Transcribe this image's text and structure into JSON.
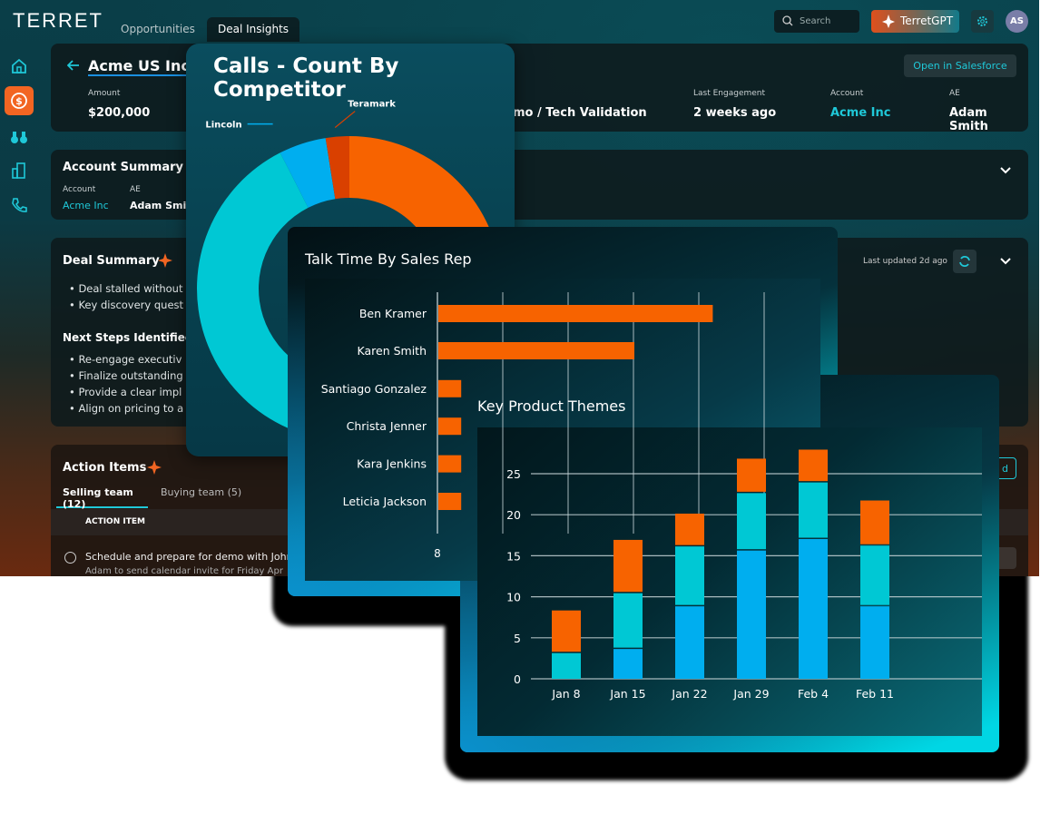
{
  "app": {
    "logo": "TERRET",
    "tabs": [
      {
        "label": "Opportunities",
        "active": false
      },
      {
        "label": "Deal Insights",
        "active": true
      }
    ],
    "search_placeholder": "Search",
    "gpt_button": "TerretGPT",
    "avatar_initials": "AS",
    "sidebar_icons": [
      "home-icon",
      "dollar-icon",
      "binoculars-icon",
      "building-icon",
      "phone-icon"
    ],
    "active_sidebar": "dollar-icon",
    "colors": {
      "accent": "#f26522",
      "teal": "#1fc8d8"
    }
  },
  "deal": {
    "title": "Acme US Inc N",
    "open_salesforce": "Open in Salesforce",
    "fields": [
      {
        "label": "Amount",
        "value": "$200,000"
      },
      {
        "label": "",
        "value": "mo / Tech Validation"
      },
      {
        "label": "Last Engagement",
        "value": "2 weeks ago"
      },
      {
        "label": "Account",
        "value": "Acme Inc"
      },
      {
        "label": "AE",
        "value": "Adam Smith"
      }
    ]
  },
  "account_summary": {
    "title": "Account Summary",
    "account_label": "Account",
    "account_value": "Acme Inc",
    "ae_label": "AE",
    "ae_value": "Adam Smit"
  },
  "deal_summary": {
    "title": "Deal Summary",
    "last_updated": "Last updated 2d ago",
    "bullets": [
      "Deal stalled without",
      "Key discovery quest"
    ],
    "next_steps_title": "Next Steps Identified",
    "next_steps": [
      "Re-engage executiv",
      "Finalize outstanding",
      "Provide a clear impl",
      "Align on pricing to a"
    ]
  },
  "action_items": {
    "title": "Action Items",
    "tabs": [
      {
        "label": "Selling team (12)",
        "active": true
      },
      {
        "label": "Buying team (5)",
        "active": false
      }
    ],
    "column": "ACTION ITEM",
    "rows": [
      {
        "text": "Schedule and prepare for demo with John",
        "sub": "Adam to send calendar invite for Friday Apr"
      }
    ],
    "partial_button": "d"
  },
  "chart_data": [
    {
      "type": "pie",
      "title": "Calls - Count By Competitor",
      "donut": true,
      "slices": [
        {
          "name": "",
          "value": 47.5,
          "color": "#f76300"
        },
        {
          "name": "",
          "value": 45,
          "color": "#00c8d4"
        },
        {
          "name": "Lincoln",
          "value": 5,
          "color": "#00aeef"
        },
        {
          "name": "Teramark",
          "value": 2.5,
          "color": "#d94000"
        }
      ]
    },
    {
      "type": "bar",
      "orientation": "horizontal",
      "title": "Talk Time By Sales Rep",
      "categories": [
        "Ben Kramer",
        "Karen Smith",
        "Santiago Gonzalez",
        "Christa Jenner",
        "Kara Jenkins",
        "Leticia Jackson"
      ],
      "values": [
        12.2,
        11.0,
        8.35,
        8.35,
        8.35,
        8.35
      ],
      "xlim": [
        8,
        14
      ],
      "x_ticks": [
        "8"
      ],
      "grid": true,
      "color": "#f76300"
    },
    {
      "type": "bar",
      "stacked": true,
      "title": "Key Product Themes",
      "categories": [
        "Jan 8",
        "Jan 15",
        "Jan 22",
        "Jan 29",
        "Feb 4",
        "Feb 11"
      ],
      "series": [
        {
          "values": [
            0,
            3.8,
            9,
            15.8,
            17.2,
            9
          ],
          "color": "#00aeef"
        },
        {
          "values": [
            3.3,
            6.8,
            7.3,
            7,
            6.9,
            7.4
          ],
          "color": "#00c8d4"
        },
        {
          "values": [
            5.2,
            6.5,
            4,
            4.2,
            4,
            5.5
          ],
          "color": "#f76300"
        }
      ],
      "ylim": [
        0,
        28
      ],
      "y_ticks": [
        0,
        5,
        10,
        15,
        20,
        25
      ],
      "grid": true
    }
  ]
}
